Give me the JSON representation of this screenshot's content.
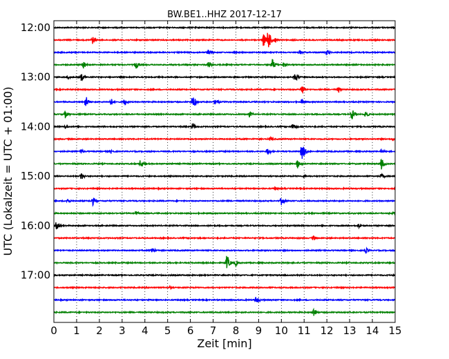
{
  "chart_data": {
    "type": "line",
    "title": "BW.BE1..HHZ 2017-12-17",
    "xlabel": "Zeit  [min]",
    "ylabel": "UTC (Lokalzeit = UTC + 01:00)",
    "xlim": [
      0,
      15
    ],
    "x_ticks": [
      "0",
      "1",
      "2",
      "3",
      "4",
      "5",
      "6",
      "7",
      "8",
      "9",
      "10",
      "11",
      "12",
      "13",
      "14",
      "15"
    ],
    "y_ticks": [
      {
        "label": "12:00",
        "row": 0
      },
      {
        "label": "13:00",
        "row": 4
      },
      {
        "label": "14:00",
        "row": 8
      },
      {
        "label": "15:00",
        "row": 12
      },
      {
        "label": "16:00",
        "row": 16
      },
      {
        "label": "17:00",
        "row": 20
      }
    ],
    "grid": "vertical-dotted",
    "color_cycle": [
      "#000000",
      "#ff0000",
      "#0000ff",
      "#008000"
    ],
    "rows": [
      {
        "start": "12:00",
        "events": []
      },
      {
        "start": "12:15",
        "events": [
          {
            "t": 1.7,
            "a": 0.5
          },
          {
            "t": 9.2,
            "a": 0.9
          },
          {
            "t": 9.4,
            "a": 1.5
          },
          {
            "t": 9.7,
            "a": 0.5
          }
        ]
      },
      {
        "start": "12:30",
        "events": [
          {
            "t": 6.8,
            "a": 0.5
          },
          {
            "t": 10.8,
            "a": 0.3
          },
          {
            "t": 12.0,
            "a": 0.4
          }
        ]
      },
      {
        "start": "12:45",
        "events": [
          {
            "t": 1.3,
            "a": 0.5
          },
          {
            "t": 3.6,
            "a": 0.6
          },
          {
            "t": 6.8,
            "a": 0.5
          },
          {
            "t": 9.6,
            "a": 0.7
          },
          {
            "t": 10.1,
            "a": 0.3
          }
        ]
      },
      {
        "start": "13:00",
        "events": [
          {
            "t": 0.6,
            "a": 0.3
          },
          {
            "t": 1.2,
            "a": 0.5
          },
          {
            "t": 10.6,
            "a": 0.7
          }
        ]
      },
      {
        "start": "13:15",
        "events": [
          {
            "t": 10.9,
            "a": 0.7
          },
          {
            "t": 12.5,
            "a": 0.4
          }
        ]
      },
      {
        "start": "13:30",
        "events": [
          {
            "t": 1.4,
            "a": 0.8
          },
          {
            "t": 2.5,
            "a": 0.5
          },
          {
            "t": 3.1,
            "a": 0.5
          },
          {
            "t": 6.1,
            "a": 1.0
          },
          {
            "t": 7.1,
            "a": 0.5
          },
          {
            "t": 10.9,
            "a": 0.4
          }
        ]
      },
      {
        "start": "13:45",
        "events": [
          {
            "t": 0.5,
            "a": 0.5
          },
          {
            "t": 8.6,
            "a": 0.4
          },
          {
            "t": 13.1,
            "a": 0.7
          },
          {
            "t": 13.7,
            "a": 0.5
          }
        ]
      },
      {
        "start": "14:00",
        "events": [
          {
            "t": 0.5,
            "a": 0.3
          },
          {
            "t": 6.1,
            "a": 0.5
          },
          {
            "t": 10.5,
            "a": 0.5
          }
        ]
      },
      {
        "start": "14:15",
        "events": [
          {
            "t": 9.5,
            "a": 0.3
          },
          {
            "t": 14.9,
            "a": 0.2
          }
        ]
      },
      {
        "start": "14:30",
        "events": [
          {
            "t": 1.2,
            "a": 0.3
          },
          {
            "t": 2.5,
            "a": 0.3
          },
          {
            "t": 9.4,
            "a": 0.5
          },
          {
            "t": 10.9,
            "a": 1.2
          },
          {
            "t": 14.4,
            "a": 0.3
          }
        ]
      },
      {
        "start": "14:45",
        "events": [
          {
            "t": 3.8,
            "a": 0.5
          },
          {
            "t": 10.7,
            "a": 0.6
          },
          {
            "t": 14.4,
            "a": 0.7
          }
        ]
      },
      {
        "start": "15:00",
        "events": [
          {
            "t": 1.2,
            "a": 0.5
          },
          {
            "t": 11.0,
            "a": 0.2
          },
          {
            "t": 14.4,
            "a": 0.4
          }
        ]
      },
      {
        "start": "15:15",
        "events": [
          {
            "t": 9.7,
            "a": 0.3
          }
        ]
      },
      {
        "start": "15:30",
        "events": [
          {
            "t": 0.6,
            "a": 0.4
          },
          {
            "t": 1.7,
            "a": 0.6
          },
          {
            "t": 10.0,
            "a": 0.5
          }
        ]
      },
      {
        "start": "15:45",
        "events": [
          {
            "t": 3.6,
            "a": 0.3
          },
          {
            "t": 14.9,
            "a": 0.2
          }
        ]
      },
      {
        "start": "16:00",
        "events": [
          {
            "t": 0.1,
            "a": 0.5
          },
          {
            "t": 13.4,
            "a": 0.3
          }
        ]
      },
      {
        "start": "16:15",
        "events": [
          {
            "t": 11.4,
            "a": 0.4
          }
        ]
      },
      {
        "start": "16:30",
        "events": [
          {
            "t": 4.3,
            "a": 0.5
          },
          {
            "t": 13.7,
            "a": 0.4
          }
        ]
      },
      {
        "start": "16:45",
        "events": [
          {
            "t": 7.6,
            "a": 1.0
          },
          {
            "t": 8.0,
            "a": 0.4
          }
        ]
      },
      {
        "start": "17:00",
        "events": []
      },
      {
        "start": "17:15",
        "events": [
          {
            "t": 5.1,
            "a": 0.2
          }
        ]
      },
      {
        "start": "17:30",
        "events": [
          {
            "t": 8.9,
            "a": 0.6
          }
        ]
      },
      {
        "start": "17:45",
        "events": [
          {
            "t": 11.4,
            "a": 0.7
          }
        ]
      }
    ]
  }
}
